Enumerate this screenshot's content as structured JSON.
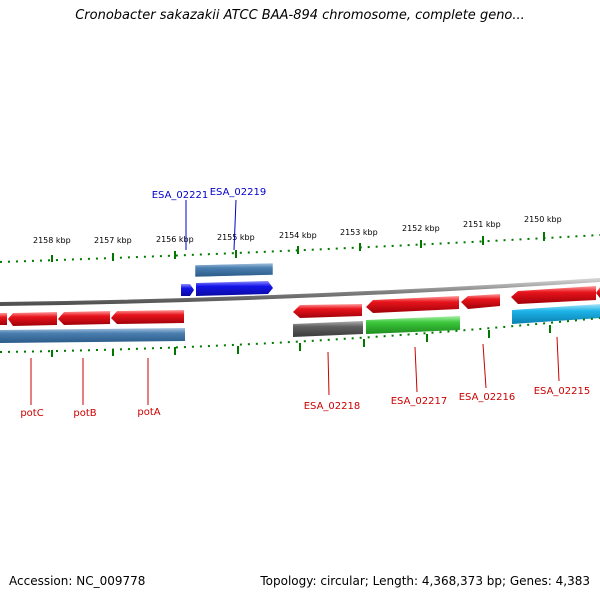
{
  "title": "Cronobacter sakazakii ATCC BAA-894 chromosome, complete geno...",
  "footer": {
    "accession": "Accession: NC_009778",
    "topology": "Topology: circular; Length: 4,368,373 bp; Genes: 4,383"
  },
  "scale_ticks": [
    "2158 kbp",
    "2157 kbp",
    "2156 kbp",
    "2155 kbp",
    "2154 kbp",
    "2153 kbp",
    "2152 kbp",
    "2151 kbp",
    "2150 kbp"
  ],
  "gene_labels": {
    "potC": "potC",
    "potB": "potB",
    "potA": "potA",
    "ESA_02221": "ESA_02221",
    "ESA_02219": "ESA_02219",
    "ESA_02218": "ESA_02218",
    "ESA_02217": "ESA_02217",
    "ESA_02216": "ESA_02216",
    "ESA_02215": "ESA_02215"
  },
  "colors": {
    "backbone": "#888888",
    "gene_red": "#e8141c",
    "gene_blue_light": "#4a7fb0",
    "gene_blue_dark": "#1414e8",
    "gene_gray": "#606060",
    "gene_green": "#3cc83c",
    "gene_cyan": "#1eb4e8",
    "tick_green": "#007800",
    "label_red": "#cc0000",
    "label_blue": "#0000cc"
  }
}
